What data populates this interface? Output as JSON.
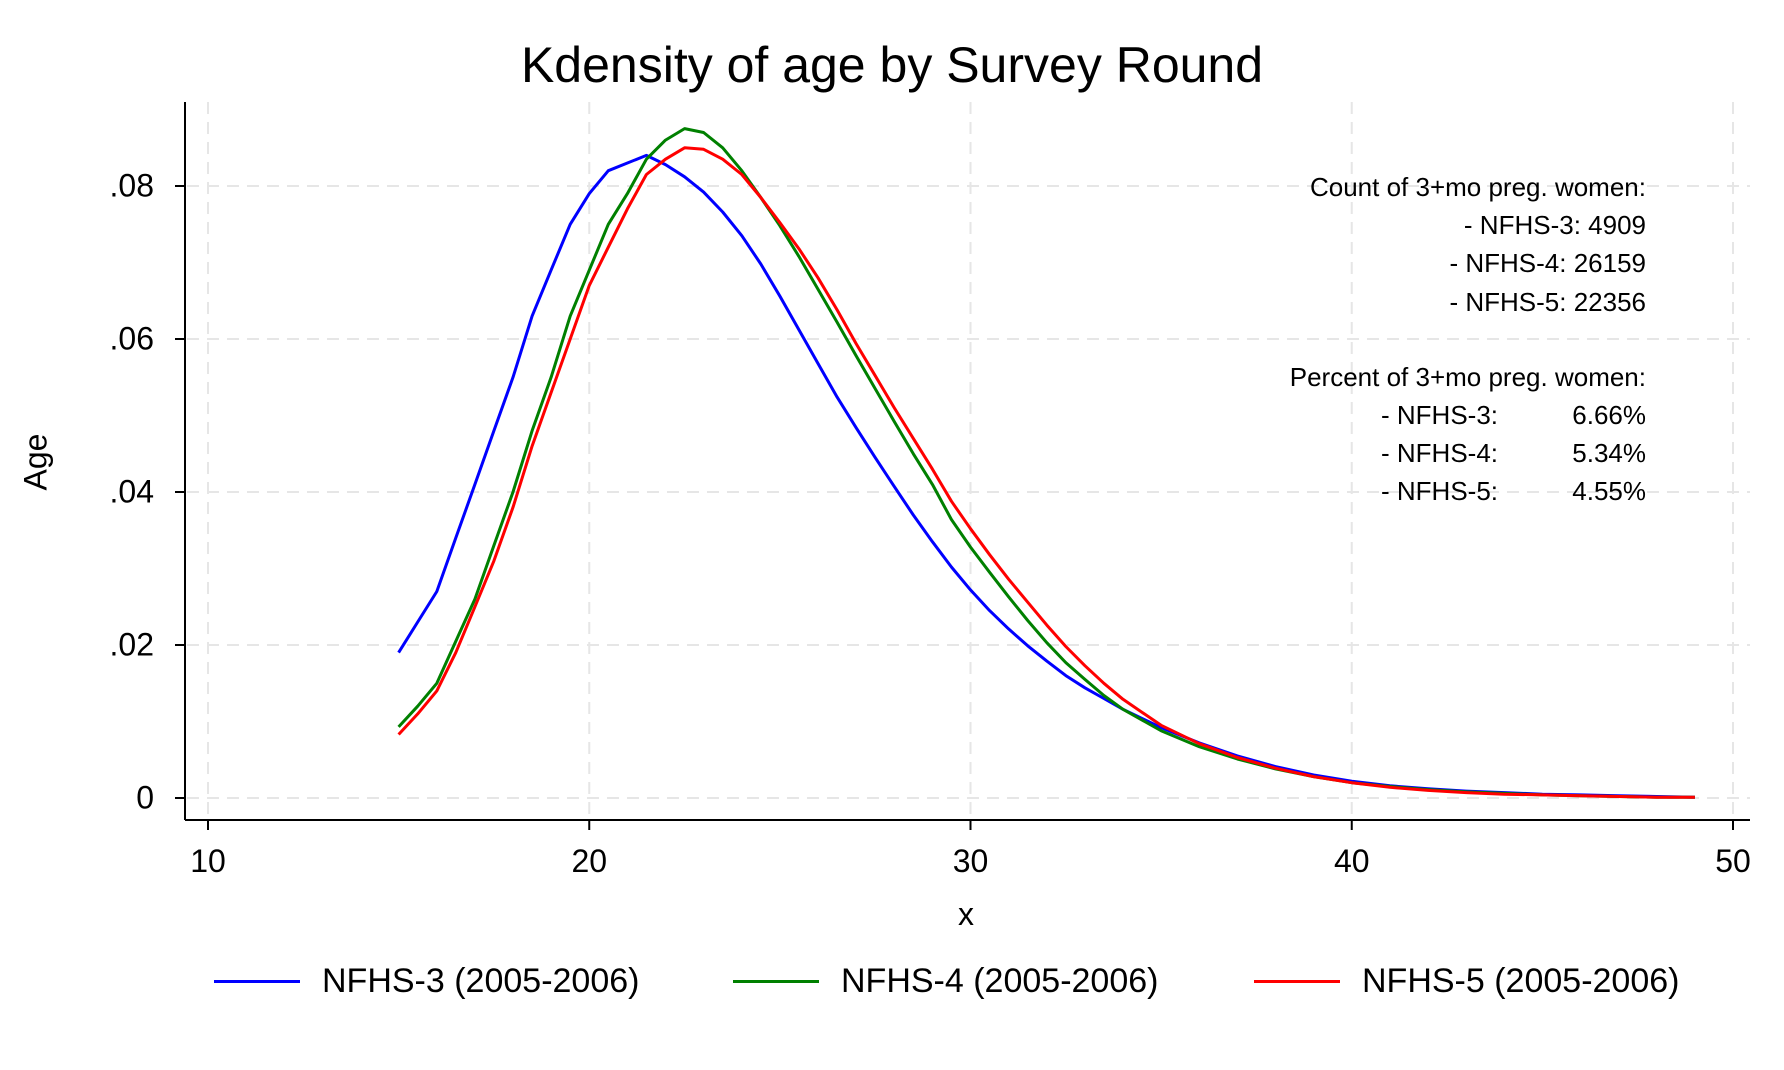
{
  "chart_data": {
    "type": "line",
    "title": "Kdensity of age by Survey Round",
    "xlabel": "x",
    "ylabel": "Age",
    "xlim": [
      10,
      50
    ],
    "ylim": [
      -0.003,
      0.091
    ],
    "xticks": [
      10,
      20,
      30,
      40,
      50
    ],
    "xtick_labels": [
      "10",
      "20",
      "30",
      "40",
      "50"
    ],
    "yticks": [
      0,
      0.02,
      0.04,
      0.06,
      0.08
    ],
    "ytick_labels": [
      "0",
      ".02",
      ".04",
      ".06",
      ".08"
    ],
    "grid": true,
    "legend_position": "bottom",
    "series": [
      {
        "name": "NFHS-3 (2005-2006)",
        "color": "#0000ff",
        "x": [
          15,
          15.5,
          16,
          16.5,
          17,
          17.5,
          18,
          18.5,
          19,
          19.5,
          20,
          20.5,
          21,
          21.5,
          22,
          22.5,
          23,
          23.5,
          24,
          24.5,
          25,
          25.5,
          26,
          26.5,
          27,
          27.5,
          28,
          28.5,
          29,
          29.5,
          30,
          30.5,
          31,
          31.5,
          32,
          32.5,
          33,
          33.5,
          34,
          35,
          36,
          37,
          38,
          39,
          40,
          41,
          42,
          43,
          44,
          45,
          46,
          47,
          48,
          49
        ],
        "values": [
          0.019,
          0.023,
          0.027,
          0.034,
          0.041,
          0.048,
          0.055,
          0.063,
          0.069,
          0.075,
          0.079,
          0.082,
          0.083,
          0.084,
          0.0828,
          0.0812,
          0.0792,
          0.0766,
          0.0735,
          0.0698,
          0.0656,
          0.0612,
          0.0568,
          0.0524,
          0.0484,
          0.0445,
          0.0407,
          0.037,
          0.0335,
          0.0302,
          0.0272,
          0.0245,
          0.0221,
          0.0199,
          0.0179,
          0.016,
          0.0144,
          0.013,
          0.0116,
          0.0092,
          0.0072,
          0.0055,
          0.0041,
          0.003,
          0.0022,
          0.0016,
          0.0012,
          0.0009,
          0.0007,
          0.0005,
          0.0004,
          0.0003,
          0.0002,
          0.0001
        ]
      },
      {
        "name": "NFHS-4 (2005-2006)",
        "color": "#008000",
        "x": [
          15,
          15.5,
          16,
          16.5,
          17,
          17.5,
          18,
          18.5,
          19,
          19.5,
          20,
          20.5,
          21,
          21.5,
          22,
          22.5,
          23,
          23.5,
          24,
          24.5,
          25,
          25.5,
          26,
          26.5,
          27,
          27.5,
          28,
          28.5,
          29,
          29.5,
          30,
          30.5,
          31,
          31.5,
          32,
          32.5,
          33,
          33.5,
          34,
          35,
          36,
          37,
          38,
          39,
          40,
          41,
          42,
          43,
          44,
          45,
          46,
          47,
          48,
          49
        ],
        "values": [
          0.0093,
          0.012,
          0.015,
          0.0205,
          0.026,
          0.033,
          0.04,
          0.048,
          0.055,
          0.063,
          0.069,
          0.075,
          0.079,
          0.0835,
          0.086,
          0.0875,
          0.087,
          0.085,
          0.082,
          0.0785,
          0.0748,
          0.0708,
          0.0665,
          0.0622,
          0.0578,
          0.0535,
          0.0492,
          0.045,
          0.041,
          0.0364,
          0.0328,
          0.0295,
          0.0263,
          0.0232,
          0.0203,
          0.0177,
          0.0155,
          0.0134,
          0.0116,
          0.0088,
          0.0067,
          0.0051,
          0.0038,
          0.0028,
          0.002,
          0.0015,
          0.0011,
          0.0008,
          0.0006,
          0.0004,
          0.0003,
          0.0002,
          0.0001,
          0.0001
        ]
      },
      {
        "name": "NFHS-5 (2005-2006)",
        "color": "#ff0000",
        "x": [
          15,
          15.5,
          16,
          16.5,
          17,
          17.5,
          18,
          18.5,
          19,
          19.5,
          20,
          20.5,
          21,
          21.5,
          22,
          22.5,
          23,
          23.5,
          24,
          24.5,
          25,
          25.5,
          26,
          26.5,
          27,
          27.5,
          28,
          28.5,
          29,
          29.5,
          30,
          30.5,
          31,
          31.5,
          32,
          32.5,
          33,
          33.5,
          34,
          35,
          36,
          37,
          38,
          39,
          40,
          41,
          42,
          43,
          44,
          45,
          46,
          47,
          48,
          49
        ],
        "values": [
          0.0083,
          0.011,
          0.014,
          0.019,
          0.025,
          0.031,
          0.038,
          0.046,
          0.053,
          0.06,
          0.067,
          0.072,
          0.077,
          0.0815,
          0.0835,
          0.085,
          0.0848,
          0.0835,
          0.0815,
          0.0785,
          0.0752,
          0.0718,
          0.068,
          0.0638,
          0.0594,
          0.0552,
          0.051,
          0.047,
          0.043,
          0.0388,
          0.0352,
          0.0318,
          0.0286,
          0.0256,
          0.0226,
          0.0198,
          0.0173,
          0.015,
          0.0129,
          0.0095,
          0.0071,
          0.0053,
          0.0039,
          0.0028,
          0.002,
          0.0014,
          0.001,
          0.0007,
          0.0005,
          0.0004,
          0.0003,
          0.0002,
          0.0001,
          0.0001
        ]
      }
    ],
    "annotations": {
      "count_header": "Count of 3+mo preg. women:",
      "count_lines": [
        "- NFHS-3: 4909",
        "- NFHS-4: 26159",
        "- NFHS-5: 22356"
      ],
      "percent_header": "Percent of 3+mo preg. women:",
      "percent_names": [
        "- NFHS-3:",
        "- NFHS-4:",
        "- NFHS-5:"
      ],
      "percent_values": [
        "6.66%",
        "5.34%",
        "4.55%"
      ]
    }
  }
}
